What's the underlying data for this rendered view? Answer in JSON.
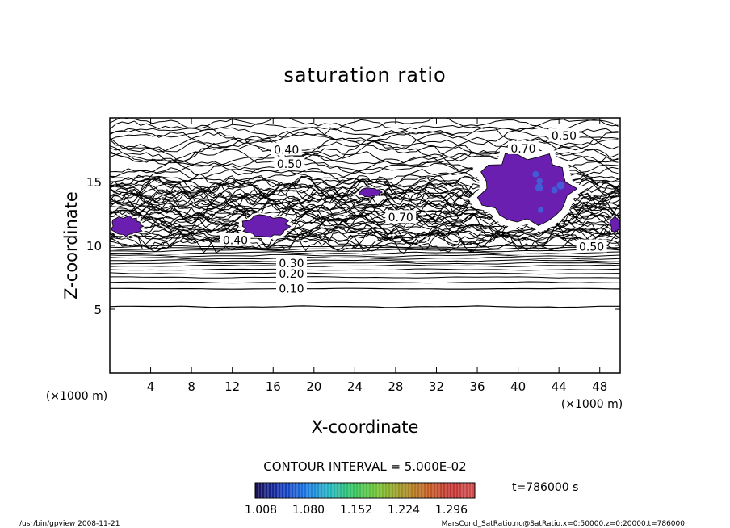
{
  "chart_data": {
    "type": "contour",
    "title": "saturation ratio",
    "xlabel": "X-coordinate",
    "ylabel": "Z-coordinate",
    "x_unit": "(×1000 m)",
    "y_unit": "(×1000 m)",
    "xlim": [
      0,
      50
    ],
    "ylim": [
      0,
      20
    ],
    "x_ticks": [
      4,
      8,
      12,
      16,
      20,
      24,
      28,
      32,
      36,
      40,
      44,
      48
    ],
    "y_ticks": [
      5,
      10,
      15
    ],
    "contour_interval_text": "CONTOUR INTERVAL = 5.000E-02",
    "time_text": "t=786000 s",
    "contour_labels": [
      {
        "text": "0.10",
        "x": 17.8,
        "z": 6.6
      },
      {
        "text": "0.20",
        "x": 17.8,
        "z": 7.8
      },
      {
        "text": "0.30",
        "x": 17.8,
        "z": 8.6
      },
      {
        "text": "0.40",
        "x": 17.3,
        "z": 17.5
      },
      {
        "text": "0.50",
        "x": 17.6,
        "z": 16.4
      },
      {
        "text": "0.70",
        "x": 40.5,
        "z": 17.6
      },
      {
        "text": "0.50",
        "x": 44.5,
        "z": 18.6
      },
      {
        "text": "0.50",
        "x": 47.2,
        "z": 9.9
      },
      {
        "text": "0.40",
        "x": 12.3,
        "z": 10.4
      },
      {
        "text": "0.70",
        "x": 28.5,
        "z": 12.2
      }
    ],
    "supersaturated_regions": [
      {
        "name": "left-edge",
        "x": [
          0,
          3.2
        ],
        "z": [
          10.7,
          12.3
        ],
        "color": "#6a1fb0"
      },
      {
        "name": "x13-x18",
        "x": [
          12.8,
          17.6
        ],
        "z": [
          10.6,
          12.4
        ],
        "color": "#6a1fb0"
      },
      {
        "name": "x25",
        "x": [
          24.4,
          26.6
        ],
        "z": [
          13.8,
          14.5
        ],
        "color": "#6a1fb0"
      },
      {
        "name": "x36-x45",
        "x": [
          36.2,
          45.6
        ],
        "z": [
          11.6,
          17.3
        ],
        "color": "#6a1fb0"
      },
      {
        "name": "right-edge",
        "x": [
          49.0,
          50
        ],
        "z": [
          11.0,
          12.3
        ],
        "color": "#6a1fb0"
      }
    ],
    "colorbar": {
      "ticks": [
        "1.008",
        "1.080",
        "1.152",
        "1.224",
        "1.296"
      ],
      "colors": [
        "#1a1050",
        "#1230b0",
        "#1a70e0",
        "#20b0c0",
        "#30c060",
        "#70c030",
        "#a09020",
        "#c06020",
        "#c03030",
        "#d05050"
      ]
    },
    "footer_left": "/usr/bin/gpview  2008-11-21",
    "footer_right": "MarsCond_SatRatio.nc@SatRatio,x=0:50000,z=0:20000,t=786000"
  }
}
